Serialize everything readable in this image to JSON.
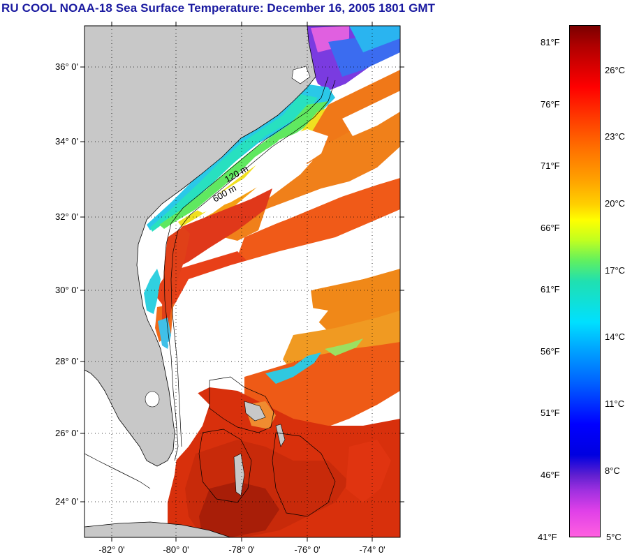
{
  "title": "RU COOL  NOAA-18  Sea Surface Temperature:  December 16, 2005 1801 GMT",
  "map": {
    "lat_labels": [
      "36° 0'",
      "34° 0'",
      "32° 0'",
      "30° 0'",
      "28° 0'",
      "26° 0'",
      "24° 0'"
    ],
    "lon_labels": [
      "-82° 0'",
      "-80° 0'",
      "-78° 0'",
      "-76° 0'",
      "-74° 0'"
    ],
    "lat_range": [
      23,
      37
    ],
    "lon_range": [
      -83,
      -73
    ],
    "isobath_labels": [
      "120 m",
      "600 m"
    ],
    "colors": {
      "land": "#c8c8c8",
      "cloud": "#ffffff",
      "grid": "#000000"
    }
  },
  "colorbar": {
    "fahrenheit_labels": [
      "81°F",
      "76°F",
      "71°F",
      "66°F",
      "61°F",
      "56°F",
      "51°F",
      "46°F",
      "41°F"
    ],
    "celsius_labels": [
      "26°C",
      "23°C",
      "20°C",
      "17°C",
      "14°C",
      "11°C",
      "8°C",
      "5°C"
    ],
    "range_c": [
      5,
      28
    ]
  }
}
